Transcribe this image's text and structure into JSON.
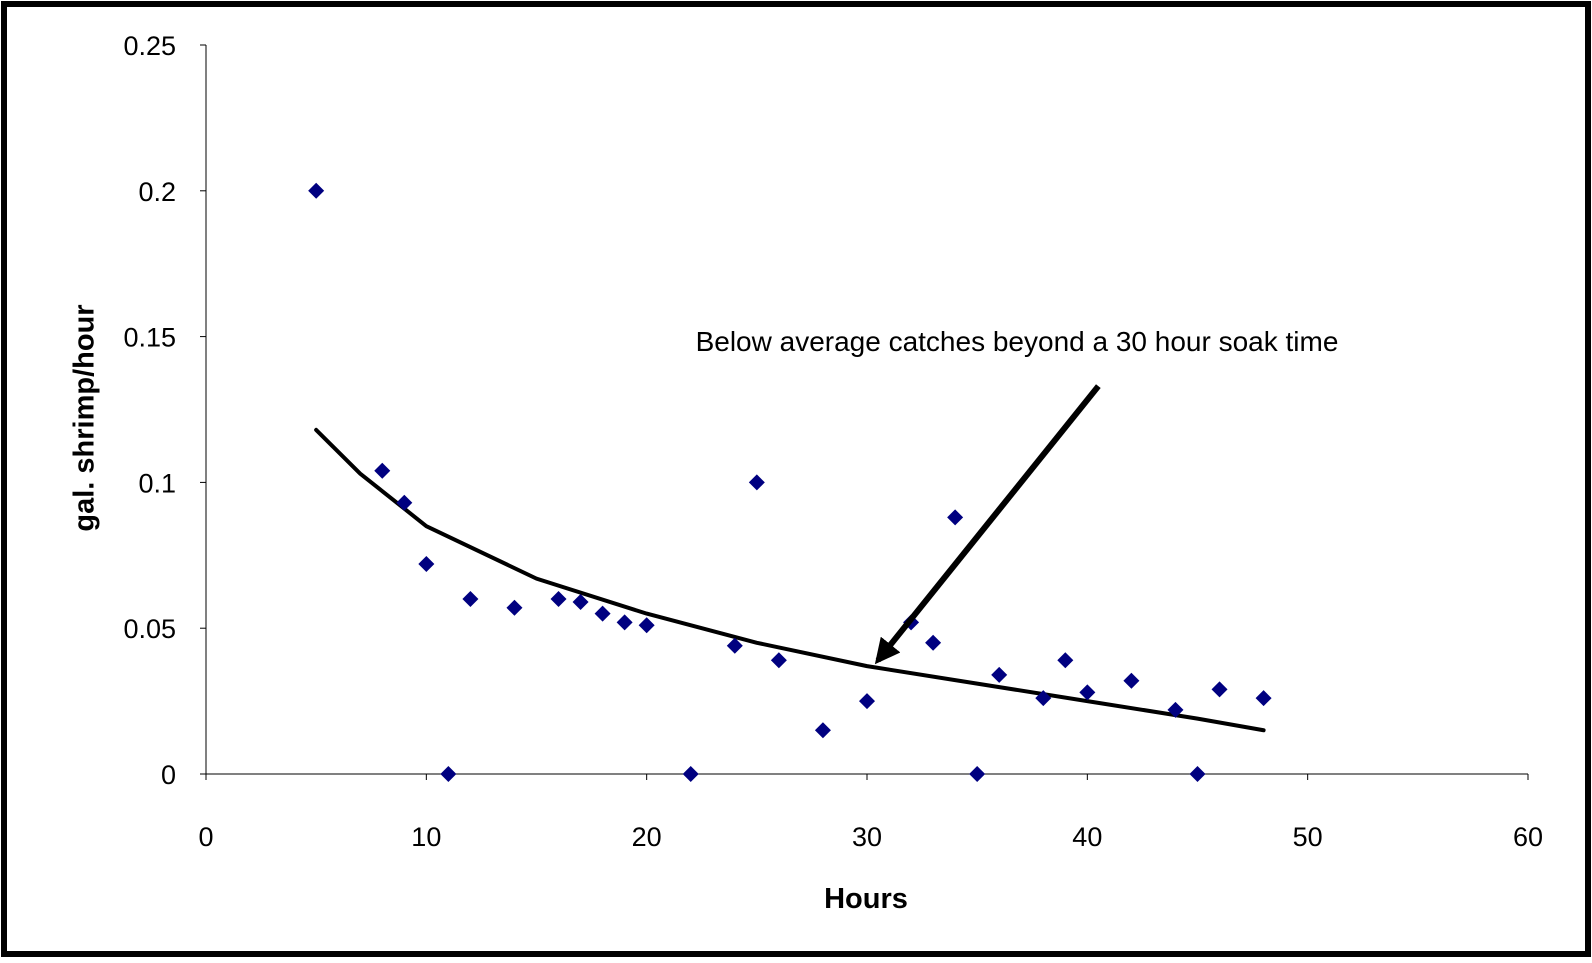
{
  "chart_data": {
    "type": "scatter",
    "title": "",
    "xlabel": "Hours",
    "ylabel": "gal. shrimp/hour",
    "xlim": [
      0,
      60
    ],
    "ylim": [
      0,
      0.25
    ],
    "xticks": [
      0,
      10,
      20,
      30,
      40,
      50,
      60
    ],
    "yticks": [
      0,
      0.05,
      0.1,
      0.15,
      0.2,
      0.25
    ],
    "xtick_labels": [
      "0",
      "10",
      "20",
      "30",
      "40",
      "50",
      "60"
    ],
    "ytick_labels": [
      "0",
      "0.05",
      "0.1",
      "0.15",
      "0.2",
      "0.25"
    ],
    "grid": false,
    "legend": "none",
    "colors": {
      "points": "#000080",
      "trend": "#000000",
      "frame": "#000000",
      "background": "#ffffff"
    },
    "series": [
      {
        "type": "scatter",
        "marker": "diamond",
        "points": [
          {
            "x": 5,
            "y": 0.2
          },
          {
            "x": 8,
            "y": 0.104
          },
          {
            "x": 9,
            "y": 0.093
          },
          {
            "x": 10,
            "y": 0.072
          },
          {
            "x": 11,
            "y": 0.0
          },
          {
            "x": 12,
            "y": 0.06
          },
          {
            "x": 14,
            "y": 0.057
          },
          {
            "x": 16,
            "y": 0.06
          },
          {
            "x": 17,
            "y": 0.059
          },
          {
            "x": 18,
            "y": 0.055
          },
          {
            "x": 19,
            "y": 0.052
          },
          {
            "x": 20,
            "y": 0.051
          },
          {
            "x": 22,
            "y": 0.0
          },
          {
            "x": 24,
            "y": 0.044
          },
          {
            "x": 25,
            "y": 0.1
          },
          {
            "x": 26,
            "y": 0.039
          },
          {
            "x": 28,
            "y": 0.015
          },
          {
            "x": 30,
            "y": 0.025
          },
          {
            "x": 32,
            "y": 0.052
          },
          {
            "x": 33,
            "y": 0.045
          },
          {
            "x": 34,
            "y": 0.088
          },
          {
            "x": 35,
            "y": 0.0
          },
          {
            "x": 36,
            "y": 0.034
          },
          {
            "x": 38,
            "y": 0.026
          },
          {
            "x": 39,
            "y": 0.039
          },
          {
            "x": 40,
            "y": 0.028
          },
          {
            "x": 42,
            "y": 0.032
          },
          {
            "x": 44,
            "y": 0.022
          },
          {
            "x": 45,
            "y": 0.0
          },
          {
            "x": 46,
            "y": 0.029
          },
          {
            "x": 48,
            "y": 0.026
          }
        ]
      },
      {
        "type": "line",
        "style": "trend",
        "points": [
          {
            "x": 5,
            "y": 0.118
          },
          {
            "x": 7,
            "y": 0.103
          },
          {
            "x": 10,
            "y": 0.085
          },
          {
            "x": 15,
            "y": 0.067
          },
          {
            "x": 20,
            "y": 0.055
          },
          {
            "x": 25,
            "y": 0.045
          },
          {
            "x": 30,
            "y": 0.037
          },
          {
            "x": 35,
            "y": 0.031
          },
          {
            "x": 40,
            "y": 0.025
          },
          {
            "x": 45,
            "y": 0.019
          },
          {
            "x": 48,
            "y": 0.015
          }
        ]
      }
    ],
    "annotations": [
      {
        "text": "Below average catches beyond a 30 hour soak time",
        "arrow_from": {
          "x": 40.5,
          "y": 0.133
        },
        "arrow_to": {
          "x": 30.5,
          "y": 0.039
        }
      }
    ]
  }
}
